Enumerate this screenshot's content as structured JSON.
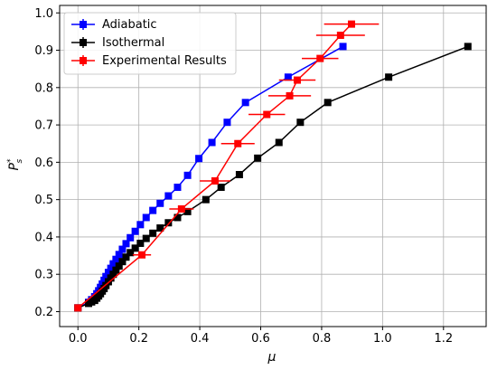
{
  "chart_data": {
    "type": "line",
    "xlabel": "μ",
    "ylabel": "P*s",
    "ylabel_main": "P",
    "ylabel_sup": "*",
    "ylabel_sub": "s",
    "xlim": [
      -0.06,
      1.34
    ],
    "ylim": [
      0.16,
      1.02
    ],
    "xticks": [
      0.0,
      0.2,
      0.4,
      0.6,
      0.8,
      1.0,
      1.2
    ],
    "xtick_labels": [
      "0.0",
      "0.2",
      "0.4",
      "0.6",
      "0.8",
      "1.0",
      "1.2"
    ],
    "yticks": [
      0.2,
      0.3,
      0.4,
      0.5,
      0.6,
      0.7,
      0.8,
      0.9,
      1.0
    ],
    "ytick_labels": [
      "0.2",
      "0.3",
      "0.4",
      "0.5",
      "0.6",
      "0.7",
      "0.8",
      "0.9",
      "1.0"
    ],
    "grid": true,
    "legend_position": "top-left",
    "series": [
      {
        "name": "Adiabatic",
        "color": "#0000ff",
        "x": [
          0.0,
          0.035,
          0.045,
          0.055,
          0.062,
          0.068,
          0.074,
          0.08,
          0.086,
          0.092,
          0.1,
          0.108,
          0.116,
          0.125,
          0.135,
          0.146,
          0.158,
          0.172,
          0.188,
          0.205,
          0.224,
          0.246,
          0.27,
          0.297,
          0.327,
          0.36,
          0.397,
          0.44,
          0.49,
          0.55,
          0.69,
          0.87
        ],
        "y": [
          0.21,
          0.225,
          0.232,
          0.24,
          0.248,
          0.256,
          0.265,
          0.274,
          0.284,
          0.294,
          0.305,
          0.316,
          0.328,
          0.34,
          0.353,
          0.367,
          0.382,
          0.398,
          0.415,
          0.433,
          0.452,
          0.471,
          0.49,
          0.51,
          0.533,
          0.565,
          0.61,
          0.653,
          0.707,
          0.76,
          0.828,
          0.91
        ]
      },
      {
        "name": "Isothermal",
        "color": "#000000",
        "x": [
          0.0,
          0.035,
          0.045,
          0.055,
          0.062,
          0.068,
          0.074,
          0.08,
          0.086,
          0.092,
          0.1,
          0.108,
          0.116,
          0.125,
          0.135,
          0.146,
          0.158,
          0.172,
          0.188,
          0.205,
          0.224,
          0.246,
          0.27,
          0.297,
          0.327,
          0.36,
          0.42,
          0.47,
          0.53,
          0.59,
          0.66,
          0.73,
          0.82,
          1.02,
          1.28
        ],
        "y": [
          0.21,
          0.222,
          0.226,
          0.23,
          0.236,
          0.242,
          0.248,
          0.255,
          0.262,
          0.27,
          0.28,
          0.29,
          0.3,
          0.311,
          0.322,
          0.334,
          0.346,
          0.358,
          0.37,
          0.383,
          0.396,
          0.41,
          0.424,
          0.438,
          0.452,
          0.468,
          0.5,
          0.533,
          0.567,
          0.611,
          0.653,
          0.707,
          0.76,
          0.828,
          0.91
        ]
      },
      {
        "name": "Experimental Results",
        "color": "#ff0000",
        "x": [
          0.0,
          0.21,
          0.34,
          0.45,
          0.525,
          0.62,
          0.695,
          0.72,
          0.795,
          0.862,
          0.898
        ],
        "y": [
          0.21,
          0.352,
          0.475,
          0.55,
          0.65,
          0.728,
          0.778,
          0.82,
          0.878,
          0.94,
          0.97
        ],
        "xerr": [
          0.0,
          0.03,
          0.04,
          0.05,
          0.055,
          0.06,
          0.07,
          0.06,
          0.06,
          0.08,
          0.09
        ]
      }
    ]
  }
}
